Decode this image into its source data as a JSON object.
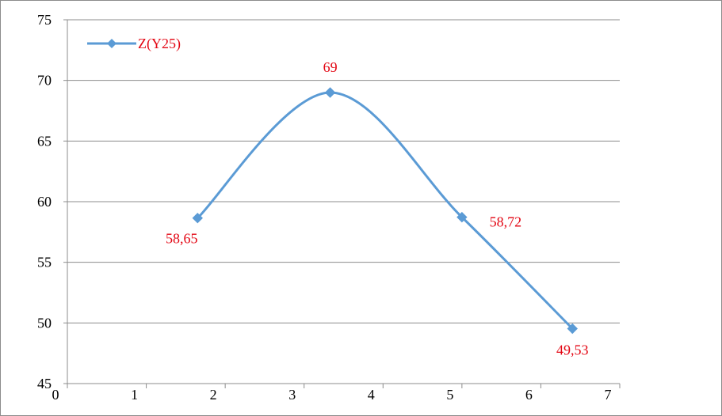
{
  "chart_data": {
    "type": "line",
    "smooth": true,
    "xlim": [
      0,
      7
    ],
    "ylim": [
      45,
      75
    ],
    "x_ticks": [
      0,
      1,
      2,
      3,
      4,
      5,
      6,
      7
    ],
    "y_ticks": [
      45,
      50,
      55,
      60,
      65,
      70,
      75
    ],
    "grid": {
      "horizontal": true,
      "vertical": false
    },
    "legend": {
      "placement": "top-left"
    },
    "series": [
      {
        "name": "Z(Y25)",
        "color": "#5b9bd5",
        "marker": "diamond",
        "x": [
          1.65,
          3.33,
          5.0,
          6.4
        ],
        "y": [
          58.65,
          69,
          58.72,
          49.53
        ],
        "data_labels": [
          "58,65",
          "69",
          "58,72",
          "49,53"
        ]
      }
    ],
    "data_label_color": "#e30613"
  }
}
